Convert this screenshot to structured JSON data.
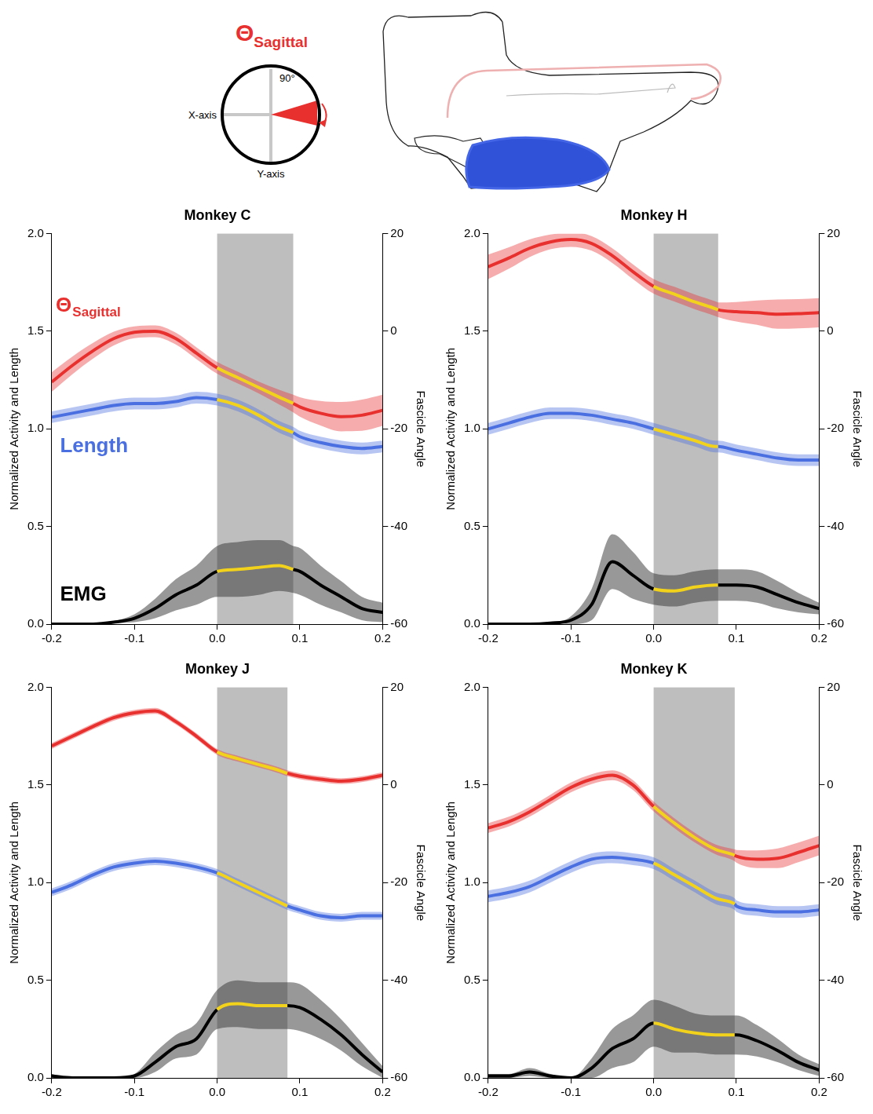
{
  "key_diagram": {
    "title": "Θ",
    "title_subscript": "Sagittal",
    "angle_label": "90°",
    "x_label": "X-axis",
    "y_label": "Y-axis"
  },
  "chart_data": [
    {
      "type": "line",
      "title": "Monkey C",
      "y_label": "Normalized Activity and Length",
      "y2_label": "Fascicle Angle",
      "x": [
        -0.2,
        -0.175,
        -0.15,
        -0.125,
        -0.1,
        -0.075,
        -0.05,
        -0.025,
        0,
        0.025,
        0.05,
        0.075,
        0.092,
        0.1,
        0.125,
        0.15,
        0.175,
        0.2
      ],
      "xlim": [
        -0.2,
        0.2
      ],
      "xticks": [
        -0.2,
        -0.1,
        {
          "value": 0,
          "label": "0.0"
        },
        0.1,
        0.2
      ],
      "ylim": [
        0,
        2
      ],
      "yticks": [
        {
          "value": 0,
          "label": "0.0"
        },
        0.5,
        {
          "value": 1,
          "label": "1.0"
        },
        1.5,
        {
          "value": 2,
          "label": "2.0"
        }
      ],
      "y2lim": [
        -60,
        20
      ],
      "y2ticks": [
        -60,
        -40,
        -20,
        0,
        20
      ],
      "grid": false,
      "shaded_x": [
        0,
        0.092
      ],
      "series": [
        {
          "color": "#e8302f",
          "axis": "y2",
          "values": [
            -10.4,
            -7,
            -4,
            -1.5,
            -0.2,
            0,
            -1.5,
            -4.5,
            -7.5,
            -9.5,
            -11.5,
            -13.5,
            -14.8,
            -15.5,
            -16.8,
            -17.5,
            -17.2,
            -16.2
          ],
          "errors": [
            2,
            1.8,
            1.6,
            1.4,
            1.2,
            1.2,
            1.2,
            1.2,
            1.2,
            1.2,
            1.2,
            1.5,
            1.8,
            2,
            2.5,
            3,
            3.2,
            3.2
          ]
        },
        {
          "color": "#4a6fe0",
          "values": [
            1.06,
            1.08,
            1.1,
            1.12,
            1.13,
            1.13,
            1.14,
            1.16,
            1.15,
            1.12,
            1.07,
            1.01,
            0.98,
            0.96,
            0.93,
            0.91,
            0.9,
            0.91
          ],
          "errors": [
            0.03,
            0.03,
            0.03,
            0.03,
            0.03,
            0.03,
            0.03,
            0.03,
            0.03,
            0.03,
            0.03,
            0.03,
            0.03,
            0.03,
            0.03,
            0.03,
            0.03,
            0.03
          ]
        },
        {
          "color": "#000000",
          "values": [
            0,
            0,
            0,
            0.01,
            0.03,
            0.08,
            0.15,
            0.2,
            0.27,
            0.28,
            0.29,
            0.3,
            0.28,
            0.27,
            0.2,
            0.14,
            0.08,
            0.06
          ],
          "errors": [
            0,
            0,
            0,
            0.005,
            0.02,
            0.05,
            0.08,
            0.1,
            0.13,
            0.14,
            0.14,
            0.13,
            0.12,
            0.12,
            0.1,
            0.08,
            0.06,
            0.05
          ]
        }
      ],
      "annotations": [
        {
          "text": "Θ",
          "subscript": "Sagittal",
          "x": -0.195,
          "y": 1.6,
          "color": "#e8302f"
        },
        {
          "text": "Length",
          "x": -0.19,
          "y": 0.88,
          "color": "#4a6fe0"
        },
        {
          "text": "EMG",
          "x": -0.19,
          "y": 0.12,
          "color": "#000000"
        }
      ]
    },
    {
      "type": "line",
      "title": "Monkey H",
      "y_label": "Normalized Activity and Length",
      "y2_label": "Fascicle Angle",
      "x": [
        -0.2,
        -0.175,
        -0.15,
        -0.125,
        -0.1,
        -0.075,
        -0.05,
        -0.025,
        0,
        0.025,
        0.05,
        0.075,
        0.078,
        0.1,
        0.125,
        0.15,
        0.175,
        0.2
      ],
      "xlim": [
        -0.2,
        0.2
      ],
      "xticks": [
        -0.2,
        -0.1,
        {
          "value": 0,
          "label": "0.0"
        },
        0.1,
        0.2
      ],
      "ylim": [
        0,
        2
      ],
      "yticks": [
        {
          "value": 0,
          "label": "0.0"
        },
        0.5,
        {
          "value": 1,
          "label": "1.0"
        },
        1.5,
        {
          "value": 2,
          "label": "2.0"
        }
      ],
      "y2lim": [
        -60,
        20
      ],
      "y2ticks": [
        -60,
        -40,
        -20,
        0,
        20
      ],
      "grid": false,
      "shaded_x": [
        0,
        0.078
      ],
      "series": [
        {
          "color": "#e8302f",
          "axis": "y2",
          "values": [
            13.2,
            15,
            17,
            18.3,
            18.8,
            18,
            15.5,
            12.2,
            9.2,
            7.6,
            6,
            4.6,
            4.4,
            4,
            3.8,
            3.5,
            3.6,
            3.8
          ],
          "errors": [
            2.5,
            2.2,
            1.8,
            1.5,
            1.5,
            1.5,
            1.5,
            1.5,
            1.5,
            1.5,
            1.5,
            1.5,
            1.5,
            2,
            2.5,
            3,
            3,
            3
          ]
        },
        {
          "color": "#4a6fe0",
          "values": [
            1.0,
            1.03,
            1.06,
            1.08,
            1.08,
            1.07,
            1.05,
            1.03,
            1.0,
            0.97,
            0.94,
            0.91,
            0.91,
            0.89,
            0.87,
            0.85,
            0.84,
            0.84
          ],
          "errors": [
            0.03,
            0.03,
            0.03,
            0.03,
            0.03,
            0.03,
            0.03,
            0.03,
            0.03,
            0.03,
            0.03,
            0.03,
            0.03,
            0.03,
            0.03,
            0.03,
            0.03,
            0.03
          ]
        },
        {
          "color": "#000000",
          "values": [
            0,
            0,
            0,
            0.005,
            0.02,
            0.1,
            0.32,
            0.25,
            0.18,
            0.17,
            0.19,
            0.2,
            0.2,
            0.2,
            0.19,
            0.15,
            0.11,
            0.08
          ],
          "errors": [
            0,
            0,
            0,
            0,
            0.02,
            0.08,
            0.14,
            0.12,
            0.08,
            0.08,
            0.08,
            0.08,
            0.08,
            0.08,
            0.08,
            0.07,
            0.05,
            0.03
          ]
        }
      ]
    },
    {
      "type": "line",
      "title": "Monkey J",
      "y_label": "Normalized Activity and Length",
      "y2_label": "Fascicle Angle",
      "x": [
        -0.2,
        -0.175,
        -0.15,
        -0.125,
        -0.1,
        -0.075,
        -0.05,
        -0.025,
        0,
        0.025,
        0.05,
        0.075,
        0.085,
        0.1,
        0.125,
        0.15,
        0.175,
        0.2
      ],
      "xlim": [
        -0.2,
        0.2
      ],
      "xticks": [
        -0.2,
        -0.1,
        {
          "value": 0,
          "label": "0.0"
        },
        0.1,
        0.2
      ],
      "ylim": [
        0,
        2
      ],
      "yticks": [
        {
          "value": 0,
          "label": "0.0"
        },
        0.5,
        {
          "value": 1,
          "label": "1.0"
        },
        1.5,
        {
          "value": 2,
          "label": "2.0"
        }
      ],
      "y2lim": [
        -60,
        20
      ],
      "y2ticks": [
        -60,
        -40,
        -20,
        0,
        20
      ],
      "grid": false,
      "shaded_x": [
        0,
        0.085
      ],
      "series": [
        {
          "color": "#e8302f",
          "axis": "y2",
          "values": [
            8,
            10,
            12,
            13.8,
            14.8,
            15.2,
            13,
            10,
            6.8,
            5.4,
            4.2,
            3,
            2.4,
            1.8,
            1.2,
            0.8,
            1.2,
            2
          ],
          "errors": [
            0.6,
            0.6,
            0.6,
            0.6,
            0.6,
            0.6,
            0.6,
            0.6,
            0.6,
            0.6,
            0.6,
            0.6,
            0.6,
            0.6,
            0.6,
            0.6,
            0.6,
            0.6
          ]
        },
        {
          "color": "#4a6fe0",
          "values": [
            0.95,
            0.99,
            1.04,
            1.08,
            1.1,
            1.11,
            1.1,
            1.08,
            1.05,
            1.0,
            0.95,
            0.9,
            0.88,
            0.86,
            0.83,
            0.82,
            0.83,
            0.83
          ],
          "errors": [
            0.02,
            0.02,
            0.02,
            0.02,
            0.02,
            0.02,
            0.02,
            0.02,
            0.02,
            0.02,
            0.02,
            0.02,
            0.02,
            0.02,
            0.02,
            0.02,
            0.02,
            0.02
          ]
        },
        {
          "color": "#000000",
          "values": [
            0.01,
            0,
            0,
            0,
            0.01,
            0.08,
            0.16,
            0.2,
            0.35,
            0.38,
            0.37,
            0.37,
            0.37,
            0.36,
            0.3,
            0.22,
            0.12,
            0.03
          ],
          "errors": [
            0.01,
            0,
            0,
            0,
            0.01,
            0.05,
            0.06,
            0.08,
            0.1,
            0.12,
            0.12,
            0.12,
            0.12,
            0.12,
            0.1,
            0.08,
            0.06,
            0.03
          ]
        }
      ]
    },
    {
      "type": "line",
      "title": "Monkey K",
      "y_label": "Normalized Activity and Length",
      "y2_label": "Fascicle Angle",
      "x": [
        -0.2,
        -0.175,
        -0.15,
        -0.125,
        -0.1,
        -0.075,
        -0.05,
        -0.025,
        0,
        0.025,
        0.05,
        0.075,
        0.098,
        0.1,
        0.125,
        0.15,
        0.175,
        0.2
      ],
      "xlim": [
        -0.2,
        0.2
      ],
      "xticks": [
        -0.2,
        -0.1,
        {
          "value": 0,
          "label": "0.0"
        },
        0.1,
        0.2
      ],
      "ylim": [
        0,
        2
      ],
      "yticks": [
        {
          "value": 0,
          "label": "0.0"
        },
        0.5,
        {
          "value": 1,
          "label": "1.0"
        },
        1.5,
        {
          "value": 2,
          "label": "2.0"
        }
      ],
      "y2lim": [
        -60,
        20
      ],
      "y2ticks": [
        -60,
        -40,
        -20,
        0,
        20
      ],
      "grid": false,
      "shaded_x": [
        0,
        0.098
      ],
      "series": [
        {
          "color": "#e8302f",
          "axis": "y2",
          "values": [
            -8.8,
            -7.5,
            -5.5,
            -3,
            -0.5,
            1.2,
            2,
            0,
            -4.4,
            -7.8,
            -10.8,
            -13.2,
            -14.4,
            -14.6,
            -15.2,
            -15,
            -13.8,
            -12.4
          ],
          "errors": [
            1,
            1,
            1,
            1,
            1,
            1,
            1,
            1,
            1,
            1,
            1,
            1,
            1.2,
            1.3,
            1.8,
            2,
            2,
            2
          ]
        },
        {
          "color": "#4a6fe0",
          "values": [
            0.93,
            0.95,
            0.98,
            1.03,
            1.08,
            1.12,
            1.13,
            1.12,
            1.1,
            1.04,
            0.98,
            0.92,
            0.89,
            0.88,
            0.86,
            0.85,
            0.85,
            0.86
          ],
          "errors": [
            0.03,
            0.03,
            0.03,
            0.03,
            0.03,
            0.03,
            0.03,
            0.03,
            0.03,
            0.03,
            0.03,
            0.03,
            0.03,
            0.03,
            0.03,
            0.03,
            0.03,
            0.03
          ]
        },
        {
          "color": "#000000",
          "values": [
            0.01,
            0.01,
            0.03,
            0.01,
            0,
            0.05,
            0.15,
            0.2,
            0.28,
            0.25,
            0.23,
            0.22,
            0.22,
            0.22,
            0.19,
            0.14,
            0.08,
            0.04
          ],
          "errors": [
            0.01,
            0.01,
            0.02,
            0.01,
            0,
            0.05,
            0.1,
            0.12,
            0.12,
            0.12,
            0.1,
            0.1,
            0.1,
            0.1,
            0.08,
            0.06,
            0.04,
            0.03
          ]
        }
      ]
    }
  ]
}
